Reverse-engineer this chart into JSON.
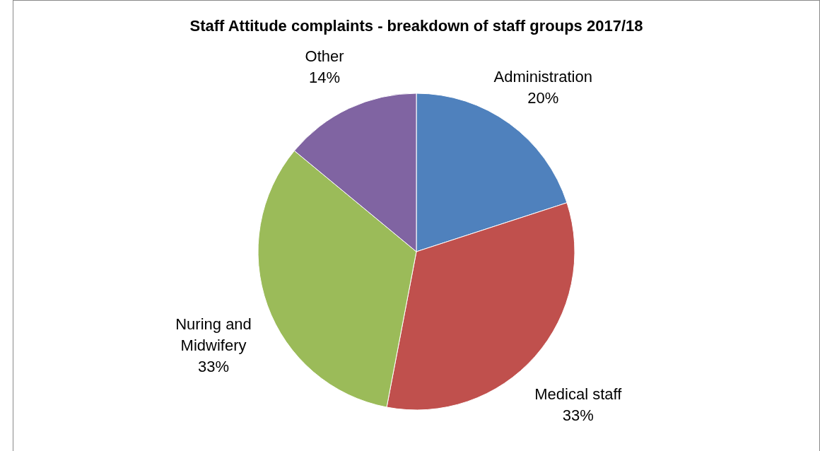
{
  "chart_data": {
    "type": "pie",
    "title": "Staff Attitude complaints - breakdown of staff groups 2017/18",
    "categories": [
      "Administration",
      "Medical staff",
      "Nuring and Midwifery",
      "Other"
    ],
    "values": [
      20,
      33,
      33,
      14
    ],
    "colors": [
      "#4f81bd",
      "#c0504d",
      "#9bbb59",
      "#8064a2"
    ],
    "value_labels": [
      "20%",
      "33%",
      "33%",
      "14%"
    ],
    "legend": false
  }
}
